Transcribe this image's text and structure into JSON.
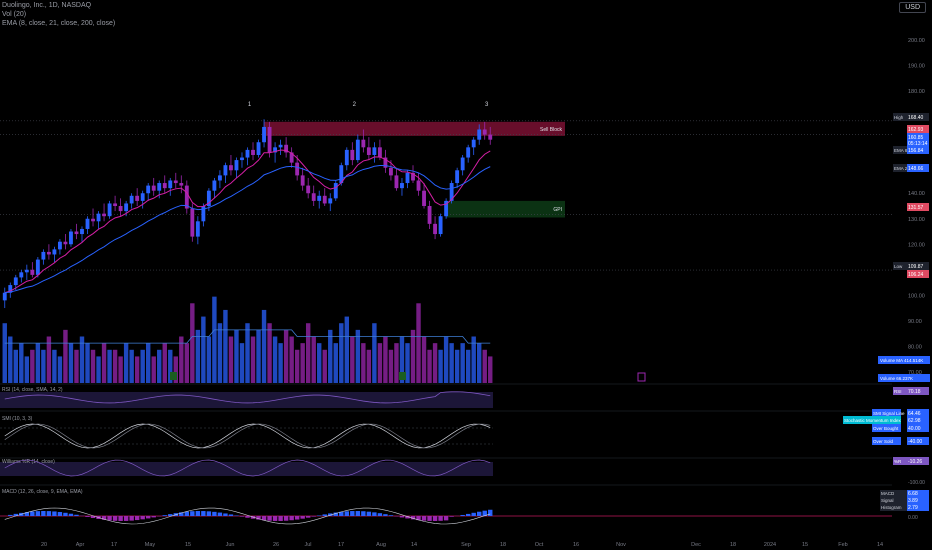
{
  "header": {
    "symbol_line": "Duolingo, Inc., 1D, NASDAQ",
    "vol_line": "Vol (20)",
    "ema_line": "EMA (8, close, 21, close, 200, close)",
    "currency": "USD"
  },
  "colors": {
    "bull": "#2962ff",
    "bear": "#9c27b0",
    "ema_fast": "#d41fa5",
    "ema_slow": "#2962ff",
    "sell_block": "#7a1133",
    "gap_box": "#0d3b16",
    "volume_ma": "#3f7fd6"
  },
  "chart_data": {
    "type": "candlestick",
    "price_axis": {
      "ticks": [
        "200.00",
        "190.00",
        "180.00",
        "170.00",
        "160.00",
        "150.00",
        "140.00",
        "130.00",
        "120.00",
        "110.00",
        "100.00",
        "90.00",
        "80.00",
        "70.00"
      ],
      "range": [
        66,
        204
      ]
    },
    "x_axis": {
      "ticks": [
        "20",
        "Apr",
        "17",
        "May",
        "15",
        "Jun",
        "26",
        "Jul",
        "17",
        "Aug",
        "14",
        "Sep",
        "18",
        "Oct",
        "16",
        "Nov",
        "Dec",
        "18",
        "2024",
        "15",
        "Feb",
        "14"
      ]
    },
    "price_labels": [
      {
        "name": "High",
        "value": "168.40"
      },
      {
        "name": "",
        "value": "162.93"
      },
      {
        "name": "",
        "value": "160.85"
      },
      {
        "name": "",
        "value": "05:13:14"
      },
      {
        "name": "EMA 8",
        "value": "156.84"
      },
      {
        "name": "EMA 21",
        "value": "148.66"
      },
      {
        "name": "",
        "value": "131.57"
      },
      {
        "name": "Low",
        "value": "109.87"
      },
      {
        "name": "",
        "value": "106.24"
      }
    ],
    "zones": [
      {
        "label": "Sell Block",
        "from": 162.5,
        "to": 168.0
      },
      {
        "label": "GPI",
        "from": 130.5,
        "to": 137.0
      }
    ],
    "wave_labels": [
      "1",
      "2",
      "3"
    ],
    "candles": [
      [
        98,
        103,
        95,
        101
      ],
      [
        101,
        105,
        99,
        104
      ],
      [
        104,
        108,
        102,
        107
      ],
      [
        107,
        110,
        105,
        109
      ],
      [
        109,
        112,
        106,
        110
      ],
      [
        110,
        113,
        107,
        108
      ],
      [
        108,
        115,
        107,
        114
      ],
      [
        114,
        118,
        112,
        117
      ],
      [
        117,
        120,
        114,
        116
      ],
      [
        116,
        119,
        113,
        118
      ],
      [
        118,
        122,
        116,
        121
      ],
      [
        121,
        124,
        118,
        120
      ],
      [
        120,
        126,
        119,
        125
      ],
      [
        125,
        128,
        122,
        124
      ],
      [
        124,
        127,
        121,
        126
      ],
      [
        126,
        131,
        124,
        130
      ],
      [
        130,
        134,
        127,
        129
      ],
      [
        129,
        133,
        126,
        132
      ],
      [
        132,
        136,
        129,
        131
      ],
      [
        131,
        137,
        130,
        136
      ],
      [
        136,
        139,
        133,
        135
      ],
      [
        135,
        138,
        131,
        133
      ],
      [
        133,
        137,
        131,
        136
      ],
      [
        136,
        140,
        134,
        139
      ],
      [
        139,
        142,
        135,
        137
      ],
      [
        137,
        141,
        134,
        140
      ],
      [
        140,
        144,
        137,
        143
      ],
      [
        143,
        146,
        139,
        141
      ],
      [
        141,
        145,
        138,
        144
      ],
      [
        144,
        147,
        140,
        142
      ],
      [
        142,
        146,
        139,
        145
      ],
      [
        145,
        148,
        142,
        144
      ],
      [
        144,
        147,
        140,
        143
      ],
      [
        143,
        145,
        132,
        134
      ],
      [
        134,
        136,
        121,
        123
      ],
      [
        123,
        131,
        120,
        129
      ],
      [
        129,
        136,
        127,
        135
      ],
      [
        135,
        142,
        133,
        141
      ],
      [
        141,
        146,
        138,
        145
      ],
      [
        145,
        149,
        142,
        147
      ],
      [
        147,
        152,
        144,
        151
      ],
      [
        151,
        155,
        147,
        149
      ],
      [
        149,
        154,
        146,
        153
      ],
      [
        153,
        156,
        150,
        154
      ],
      [
        154,
        158,
        151,
        157
      ],
      [
        157,
        160,
        153,
        155
      ],
      [
        155,
        161,
        154,
        160
      ],
      [
        160,
        169,
        158,
        166
      ],
      [
        166,
        168,
        154,
        156
      ],
      [
        156,
        160,
        152,
        158
      ],
      [
        158,
        161,
        155,
        159
      ],
      [
        159,
        162,
        154,
        156
      ],
      [
        156,
        158,
        150,
        152
      ],
      [
        152,
        155,
        145,
        147
      ],
      [
        147,
        150,
        141,
        143
      ],
      [
        143,
        146,
        138,
        140
      ],
      [
        140,
        143,
        135,
        137
      ],
      [
        137,
        141,
        134,
        139
      ],
      [
        139,
        142,
        135,
        136
      ],
      [
        136,
        140,
        133,
        138
      ],
      [
        138,
        145,
        137,
        144
      ],
      [
        144,
        152,
        143,
        151
      ],
      [
        151,
        158,
        149,
        157
      ],
      [
        157,
        160,
        151,
        153
      ],
      [
        153,
        163,
        152,
        161
      ],
      [
        161,
        165,
        156,
        158
      ],
      [
        158,
        162,
        153,
        155
      ],
      [
        155,
        160,
        152,
        158
      ],
      [
        158,
        161,
        153,
        154
      ],
      [
        154,
        157,
        148,
        150
      ],
      [
        150,
        153,
        145,
        147
      ],
      [
        147,
        150,
        141,
        142
      ],
      [
        142,
        146,
        139,
        144
      ],
      [
        144,
        149,
        142,
        148
      ],
      [
        148,
        151,
        144,
        145
      ],
      [
        145,
        148,
        139,
        141
      ],
      [
        141,
        144,
        134,
        135
      ],
      [
        135,
        137,
        126,
        128
      ],
      [
        128,
        131,
        122,
        124
      ],
      [
        124,
        132,
        123,
        131
      ],
      [
        131,
        138,
        130,
        137
      ],
      [
        137,
        145,
        136,
        144
      ],
      [
        144,
        150,
        142,
        149
      ],
      [
        149,
        155,
        147,
        154
      ],
      [
        154,
        159,
        152,
        158
      ],
      [
        158,
        162,
        155,
        161
      ],
      [
        161,
        167,
        159,
        165
      ],
      [
        165,
        168,
        161,
        163
      ],
      [
        163,
        166,
        159,
        161
      ]
    ],
    "volume_panel": {
      "labels": [
        {
          "name": "Volume MA",
          "value": "414.514K"
        },
        {
          "name": "Volume",
          "value": "66.237K"
        }
      ],
      "values": [
        9,
        7,
        5,
        6,
        4,
        5,
        6,
        5,
        7,
        5,
        4,
        8,
        6,
        5,
        7,
        6,
        5,
        4,
        6,
        5,
        5,
        4,
        6,
        5,
        4,
        5,
        6,
        4,
        5,
        6,
        5,
        4,
        7,
        6,
        12,
        8,
        10,
        7,
        13,
        9,
        11,
        7,
        8,
        6,
        9,
        7,
        8,
        11,
        9,
        7,
        6,
        8,
        7,
        5,
        6,
        9,
        7,
        6,
        5,
        8,
        6,
        9,
        10,
        7,
        8,
        6,
        5,
        9,
        6,
        7,
        5,
        6,
        7,
        6,
        8,
        12,
        7,
        5,
        6,
        5,
        7,
        6,
        5,
        6,
        5,
        7,
        6,
        5,
        4
      ],
      "ma": [
        6,
        6,
        6,
        6,
        6,
        6,
        6,
        6,
        6,
        6,
        6,
        6,
        6,
        6,
        6,
        6,
        6,
        6,
        6,
        6,
        6,
        6,
        6,
        6,
        6,
        6,
        6,
        6,
        6,
        6,
        6,
        6,
        6,
        6,
        7,
        7,
        7,
        7,
        8,
        8,
        8,
        8,
        8,
        8,
        8,
        8,
        8,
        8,
        8,
        8,
        8,
        8,
        8,
        7,
        7,
        7,
        7,
        7,
        7,
        7,
        7,
        7,
        7,
        7,
        7,
        7,
        7,
        7,
        7,
        7,
        7,
        7,
        7,
        7,
        7,
        7,
        7,
        7,
        7,
        7,
        7,
        7,
        7,
        7,
        6,
        6,
        6,
        6,
        6
      ]
    },
    "rsi_panel": {
      "legend": "RSI (14, close, SMA, 14, 2)",
      "labels": [
        {
          "name": "RSI",
          "value": "70.18"
        }
      ],
      "range": [
        0,
        100
      ]
    },
    "stoch_panel": {
      "legend": "SMI (10, 3, 3)",
      "labels": [
        {
          "name": "SMI Signal Line",
          "value": "64.46"
        },
        {
          "name": "Stochastic Momentum Index",
          "value": "62.98"
        },
        {
          "name": "Over Bought",
          "value": "40.00"
        },
        {
          "name": "Over Sold",
          "value": "-40.00"
        }
      ],
      "range": [
        -100,
        100
      ]
    },
    "wr_panel": {
      "legend": "Williams %R (14, close)",
      "labels": [
        {
          "name": "%R",
          "value": "-10.26"
        },
        {
          "name": "",
          "value": "-100.00"
        }
      ],
      "range": [
        -100,
        0
      ]
    },
    "macd_panel": {
      "legend": "MACD (12, 26, close, 9, EMA, EMA)",
      "labels": [
        {
          "name": "MACD",
          "value": "6.68"
        },
        {
          "name": "Signal",
          "value": "3.89"
        },
        {
          "name": "Histogram",
          "value": "2.79"
        }
      ],
      "tick": "0.00"
    }
  }
}
